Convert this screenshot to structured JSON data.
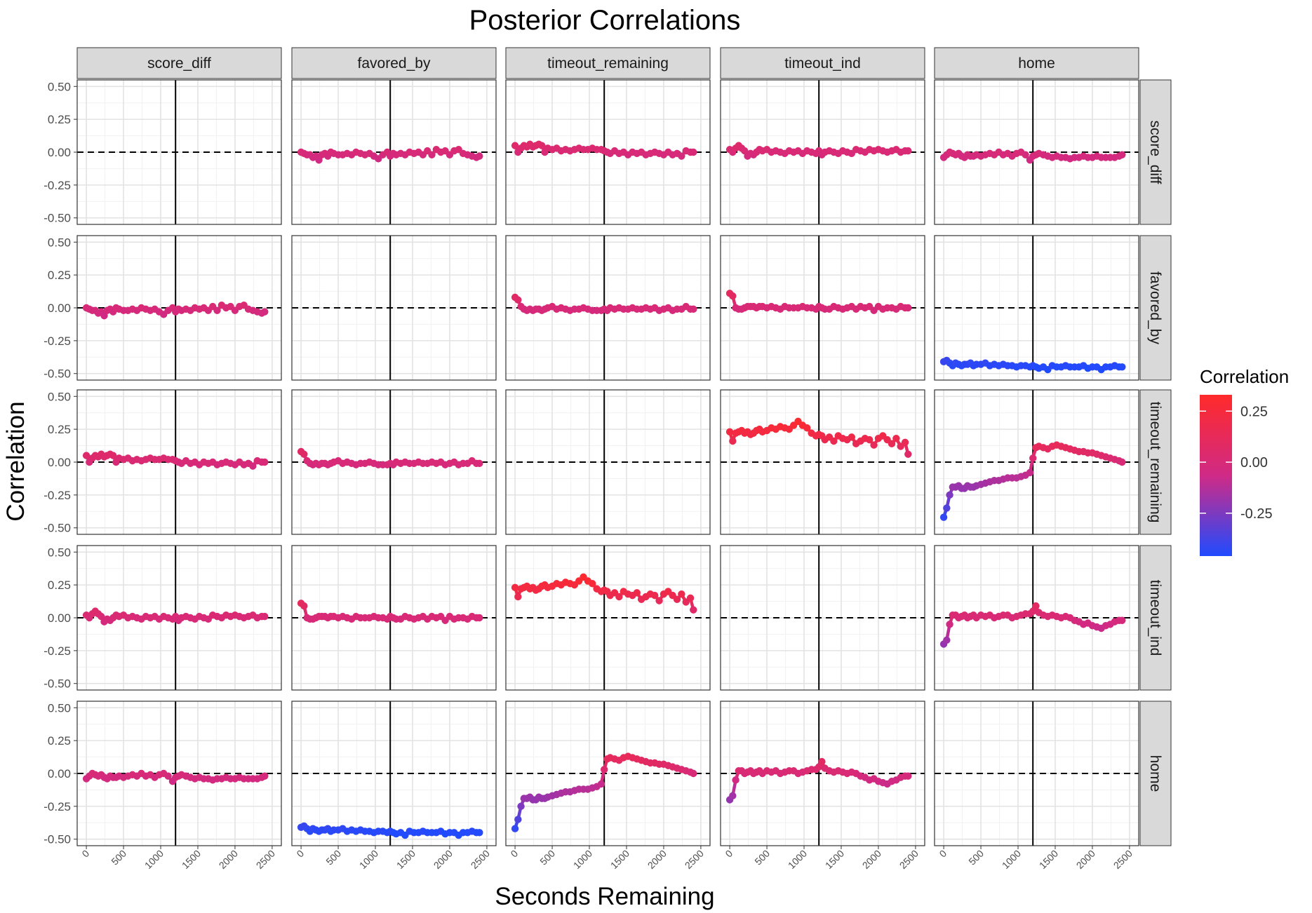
{
  "chart_data": {
    "type": "line",
    "title": "Posterior Correlations",
    "xlabel": "Seconds Remaining",
    "ylabel": "Correlation",
    "x_ticks": [
      0,
      500,
      1000,
      1500,
      2000,
      2500
    ],
    "y_ticks": [
      0.5,
      0.25,
      0.0,
      -0.25,
      -0.5
    ],
    "y_tick_labels": [
      "0.50",
      "0.25",
      "0.00",
      "-0.25",
      "-0.50"
    ],
    "xlim": [
      0,
      2500
    ],
    "ylim": [
      -0.5,
      0.5
    ],
    "vline_x": 1200,
    "hline_y": 0,
    "variables": [
      "score_diff",
      "favored_by",
      "timeout_remaining",
      "timeout_ind",
      "home"
    ],
    "x": [
      0,
      40,
      80,
      120,
      160,
      200,
      240,
      280,
      320,
      360,
      400,
      440,
      500,
      560,
      620,
      680,
      740,
      800,
      860,
      920,
      980,
      1040,
      1100,
      1160,
      1200,
      1240,
      1280,
      1340,
      1400,
      1460,
      1520,
      1580,
      1640,
      1700,
      1760,
      1820,
      1880,
      1940,
      2000,
      2060,
      2120,
      2180,
      2240,
      2300,
      2360,
      2400
    ],
    "legend": {
      "title": "Correlation",
      "labels": [
        "0.25",
        "0.00",
        "-0.25"
      ],
      "values": [
        0.25,
        0.0,
        -0.25
      ],
      "range": [
        -0.46,
        0.33
      ],
      "colors": {
        "low": "#1f4bff",
        "mid": "#d02a86",
        "high": "#ff2a2a"
      }
    },
    "panels": [
      {
        "row": "score_diff",
        "col": "favored_by",
        "values": [
          0.0,
          -0.01,
          -0.02,
          -0.02,
          -0.04,
          -0.03,
          -0.06,
          -0.02,
          -0.01,
          -0.03,
          0.0,
          -0.01,
          -0.02,
          -0.02,
          -0.01,
          -0.02,
          0.0,
          -0.01,
          -0.02,
          -0.01,
          -0.03,
          -0.05,
          -0.02,
          0.0,
          -0.03,
          -0.01,
          -0.02,
          -0.01,
          -0.02,
          0.0,
          -0.01,
          0.0,
          -0.02,
          0.01,
          -0.02,
          0.02,
          0.0,
          0.01,
          -0.02,
          0.01,
          0.02,
          -0.01,
          -0.02,
          -0.03,
          -0.04,
          -0.03
        ]
      },
      {
        "row": "score_diff",
        "col": "timeout_remaining",
        "values": [
          0.05,
          0.0,
          0.03,
          0.05,
          0.04,
          0.06,
          0.04,
          0.05,
          0.06,
          0.05,
          0.0,
          0.03,
          0.02,
          0.03,
          0.01,
          0.02,
          0.01,
          0.02,
          0.03,
          0.02,
          0.02,
          0.03,
          0.02,
          0.02,
          0.01,
          0.0,
          -0.01,
          0.01,
          -0.01,
          0.0,
          -0.02,
          0.0,
          -0.01,
          0.0,
          -0.02,
          -0.01,
          0.0,
          -0.01,
          -0.02,
          0.0,
          -0.02,
          -0.01,
          -0.03,
          0.01,
          0.0,
          0.0
        ]
      },
      {
        "row": "score_diff",
        "col": "timeout_ind",
        "values": [
          0.02,
          0.0,
          0.03,
          0.05,
          0.03,
          0.01,
          -0.03,
          -0.01,
          -0.02,
          0.0,
          0.02,
          0.01,
          0.02,
          0.0,
          0.01,
          0.0,
          -0.01,
          0.01,
          0.0,
          0.01,
          -0.01,
          0.01,
          0.0,
          -0.01,
          0.01,
          -0.02,
          0.0,
          0.01,
          0.0,
          -0.01,
          0.01,
          0.0,
          -0.01,
          0.02,
          0.01,
          0.0,
          0.02,
          0.01,
          0.02,
          0.01,
          0.0,
          0.01,
          0.02,
          0.0,
          0.01,
          0.01
        ]
      },
      {
        "row": "score_diff",
        "col": "home",
        "values": [
          -0.04,
          -0.02,
          0.0,
          -0.01,
          -0.02,
          -0.01,
          -0.03,
          -0.04,
          -0.02,
          -0.03,
          -0.03,
          -0.02,
          -0.03,
          -0.02,
          -0.01,
          -0.02,
          0.0,
          -0.02,
          -0.01,
          -0.03,
          -0.01,
          0.0,
          -0.02,
          -0.06,
          -0.03,
          -0.02,
          -0.01,
          -0.02,
          -0.03,
          -0.04,
          -0.03,
          -0.04,
          -0.04,
          -0.05,
          -0.04,
          -0.04,
          -0.03,
          -0.04,
          -0.04,
          -0.03,
          -0.04,
          -0.04,
          -0.04,
          -0.04,
          -0.03,
          -0.02
        ]
      },
      {
        "row": "favored_by",
        "col": "score_diff",
        "values": [
          0.0,
          -0.01,
          -0.02,
          -0.02,
          -0.04,
          -0.03,
          -0.06,
          -0.02,
          -0.01,
          -0.03,
          0.0,
          -0.01,
          -0.02,
          -0.02,
          -0.01,
          -0.02,
          0.0,
          -0.01,
          -0.02,
          -0.01,
          -0.03,
          -0.05,
          -0.02,
          0.0,
          -0.03,
          -0.01,
          -0.02,
          -0.01,
          -0.02,
          0.0,
          -0.01,
          0.0,
          -0.02,
          0.01,
          -0.02,
          0.02,
          0.0,
          0.01,
          -0.02,
          0.01,
          0.02,
          -0.01,
          -0.02,
          -0.03,
          -0.04,
          -0.03
        ]
      },
      {
        "row": "favored_by",
        "col": "timeout_remaining",
        "values": [
          0.08,
          0.06,
          0.01,
          -0.01,
          -0.02,
          -0.01,
          -0.02,
          -0.01,
          -0.01,
          -0.02,
          -0.01,
          0.0,
          0.01,
          -0.01,
          0.0,
          -0.01,
          -0.02,
          -0.01,
          -0.01,
          0.0,
          -0.01,
          -0.02,
          -0.02,
          -0.02,
          -0.01,
          -0.02,
          0.0,
          -0.01,
          0.0,
          -0.01,
          -0.01,
          0.0,
          -0.01,
          -0.01,
          0.0,
          -0.01,
          0.0,
          -0.02,
          -0.01,
          0.0,
          -0.02,
          -0.01,
          -0.01,
          0.01,
          -0.01,
          -0.01
        ]
      },
      {
        "row": "favored_by",
        "col": "timeout_ind",
        "values": [
          0.11,
          0.09,
          0.0,
          -0.01,
          -0.01,
          0.0,
          0.01,
          0.01,
          0.01,
          0.0,
          0.01,
          0.01,
          0.0,
          0.01,
          0.0,
          -0.01,
          0.01,
          0.0,
          0.0,
          0.0,
          0.01,
          0.0,
          0.0,
          -0.01,
          0.01,
          0.0,
          -0.01,
          -0.01,
          0.01,
          0.0,
          -0.01,
          0.0,
          0.01,
          -0.01,
          0.01,
          0.0,
          0.01,
          -0.02,
          0.01,
          -0.01,
          0.0,
          0.0,
          -0.01,
          0.01,
          0.0,
          0.0
        ]
      },
      {
        "row": "favored_by",
        "col": "home",
        "values": [
          -0.41,
          -0.4,
          -0.42,
          -0.44,
          -0.42,
          -0.43,
          -0.44,
          -0.43,
          -0.43,
          -0.42,
          -0.44,
          -0.43,
          -0.43,
          -0.42,
          -0.44,
          -0.43,
          -0.44,
          -0.43,
          -0.44,
          -0.44,
          -0.45,
          -0.44,
          -0.44,
          -0.45,
          -0.44,
          -0.45,
          -0.46,
          -0.45,
          -0.47,
          -0.44,
          -0.45,
          -0.45,
          -0.44,
          -0.45,
          -0.45,
          -0.45,
          -0.44,
          -0.46,
          -0.45,
          -0.45,
          -0.47,
          -0.45,
          -0.45,
          -0.44,
          -0.45,
          -0.45
        ]
      },
      {
        "row": "timeout_remaining",
        "col": "score_diff",
        "values": [
          0.05,
          0.0,
          0.03,
          0.05,
          0.04,
          0.06,
          0.04,
          0.05,
          0.06,
          0.05,
          0.0,
          0.03,
          0.02,
          0.03,
          0.01,
          0.02,
          0.01,
          0.02,
          0.03,
          0.02,
          0.02,
          0.03,
          0.02,
          0.02,
          0.01,
          0.0,
          -0.01,
          0.01,
          -0.01,
          0.0,
          -0.02,
          0.0,
          -0.01,
          0.0,
          -0.02,
          -0.01,
          0.0,
          -0.01,
          -0.02,
          0.0,
          -0.02,
          -0.01,
          -0.03,
          0.01,
          0.0,
          0.0
        ]
      },
      {
        "row": "timeout_remaining",
        "col": "favored_by",
        "values": [
          0.08,
          0.06,
          0.01,
          -0.01,
          -0.02,
          -0.01,
          -0.02,
          -0.01,
          -0.01,
          -0.02,
          -0.01,
          0.0,
          0.01,
          -0.01,
          0.0,
          -0.01,
          -0.02,
          -0.01,
          -0.01,
          0.0,
          -0.01,
          -0.02,
          -0.02,
          -0.02,
          -0.01,
          -0.02,
          0.0,
          -0.01,
          0.0,
          -0.01,
          -0.01,
          0.0,
          -0.01,
          -0.01,
          0.0,
          -0.01,
          0.0,
          -0.02,
          -0.01,
          0.0,
          -0.02,
          -0.01,
          -0.01,
          0.01,
          -0.01,
          -0.01
        ]
      },
      {
        "row": "timeout_remaining",
        "col": "timeout_ind",
        "values": [
          0.23,
          0.16,
          0.22,
          0.23,
          0.24,
          0.22,
          0.23,
          0.21,
          0.22,
          0.24,
          0.25,
          0.23,
          0.24,
          0.26,
          0.25,
          0.27,
          0.26,
          0.25,
          0.28,
          0.31,
          0.28,
          0.26,
          0.22,
          0.2,
          0.21,
          0.2,
          0.17,
          0.19,
          0.16,
          0.2,
          0.18,
          0.17,
          0.19,
          0.14,
          0.16,
          0.18,
          0.17,
          0.13,
          0.18,
          0.2,
          0.17,
          0.14,
          0.18,
          0.12,
          0.15,
          0.06
        ]
      },
      {
        "row": "timeout_remaining",
        "col": "home",
        "values": [
          -0.42,
          -0.35,
          -0.25,
          -0.19,
          -0.19,
          -0.18,
          -0.2,
          -0.2,
          -0.18,
          -0.19,
          -0.19,
          -0.18,
          -0.17,
          -0.16,
          -0.15,
          -0.14,
          -0.14,
          -0.13,
          -0.12,
          -0.12,
          -0.12,
          -0.11,
          -0.1,
          -0.08,
          0.03,
          0.11,
          0.12,
          0.11,
          0.1,
          0.12,
          0.13,
          0.12,
          0.11,
          0.1,
          0.09,
          0.08,
          0.08,
          0.07,
          0.07,
          0.06,
          0.05,
          0.04,
          0.03,
          0.02,
          0.01,
          0.0
        ]
      },
      {
        "row": "timeout_ind",
        "col": "score_diff",
        "values": [
          0.02,
          0.0,
          0.03,
          0.05,
          0.03,
          0.01,
          -0.03,
          -0.01,
          -0.02,
          0.0,
          0.02,
          0.01,
          0.02,
          0.0,
          0.01,
          0.0,
          -0.01,
          0.01,
          0.0,
          0.01,
          -0.01,
          0.01,
          0.0,
          -0.01,
          0.01,
          -0.02,
          0.0,
          0.01,
          0.0,
          -0.01,
          0.01,
          0.0,
          -0.01,
          0.02,
          0.01,
          0.0,
          0.02,
          0.01,
          0.02,
          0.01,
          0.0,
          0.01,
          0.02,
          0.0,
          0.01,
          0.01
        ]
      },
      {
        "row": "timeout_ind",
        "col": "favored_by",
        "values": [
          0.11,
          0.09,
          0.0,
          -0.01,
          -0.01,
          0.0,
          0.01,
          0.01,
          0.01,
          0.0,
          0.01,
          0.01,
          0.0,
          0.01,
          0.0,
          -0.01,
          0.01,
          0.0,
          0.0,
          0.0,
          0.01,
          0.0,
          0.0,
          -0.01,
          0.01,
          0.0,
          -0.01,
          -0.01,
          0.01,
          0.0,
          -0.01,
          0.0,
          0.01,
          -0.01,
          0.01,
          0.0,
          0.01,
          -0.02,
          0.01,
          -0.01,
          0.0,
          0.0,
          -0.01,
          0.01,
          0.0,
          0.0
        ]
      },
      {
        "row": "timeout_ind",
        "col": "timeout_remaining",
        "values": [
          0.23,
          0.16,
          0.22,
          0.23,
          0.24,
          0.22,
          0.23,
          0.21,
          0.22,
          0.24,
          0.25,
          0.23,
          0.24,
          0.26,
          0.25,
          0.27,
          0.26,
          0.25,
          0.28,
          0.31,
          0.28,
          0.26,
          0.22,
          0.2,
          0.21,
          0.2,
          0.17,
          0.19,
          0.16,
          0.2,
          0.18,
          0.17,
          0.19,
          0.14,
          0.16,
          0.18,
          0.17,
          0.13,
          0.18,
          0.2,
          0.17,
          0.14,
          0.18,
          0.12,
          0.15,
          0.06
        ]
      },
      {
        "row": "timeout_ind",
        "col": "home",
        "values": [
          -0.2,
          -0.17,
          -0.05,
          0.02,
          0.02,
          0.0,
          0.01,
          0.02,
          0.0,
          0.01,
          0.02,
          0.0,
          0.02,
          0.01,
          0.02,
          0.0,
          0.01,
          0.02,
          0.02,
          0.0,
          0.01,
          0.02,
          0.03,
          0.03,
          0.05,
          0.09,
          0.04,
          0.02,
          0.01,
          0.02,
          0.01,
          0.0,
          0.01,
          0.0,
          -0.02,
          -0.03,
          -0.05,
          -0.04,
          -0.06,
          -0.07,
          -0.08,
          -0.06,
          -0.05,
          -0.03,
          -0.02,
          -0.02
        ]
      },
      {
        "row": "home",
        "col": "score_diff",
        "values": [
          -0.04,
          -0.02,
          0.0,
          -0.01,
          -0.02,
          -0.01,
          -0.03,
          -0.04,
          -0.02,
          -0.03,
          -0.03,
          -0.02,
          -0.03,
          -0.02,
          -0.01,
          -0.02,
          0.0,
          -0.02,
          -0.01,
          -0.03,
          -0.01,
          0.0,
          -0.02,
          -0.06,
          -0.03,
          -0.02,
          -0.01,
          -0.02,
          -0.03,
          -0.04,
          -0.03,
          -0.04,
          -0.04,
          -0.05,
          -0.04,
          -0.04,
          -0.03,
          -0.04,
          -0.04,
          -0.03,
          -0.04,
          -0.04,
          -0.04,
          -0.04,
          -0.03,
          -0.02
        ]
      },
      {
        "row": "home",
        "col": "favored_by",
        "values": [
          -0.41,
          -0.4,
          -0.42,
          -0.44,
          -0.42,
          -0.43,
          -0.44,
          -0.43,
          -0.43,
          -0.42,
          -0.44,
          -0.43,
          -0.43,
          -0.42,
          -0.44,
          -0.43,
          -0.44,
          -0.43,
          -0.44,
          -0.44,
          -0.45,
          -0.44,
          -0.44,
          -0.45,
          -0.44,
          -0.45,
          -0.46,
          -0.45,
          -0.47,
          -0.44,
          -0.45,
          -0.45,
          -0.44,
          -0.45,
          -0.45,
          -0.45,
          -0.44,
          -0.46,
          -0.45,
          -0.45,
          -0.47,
          -0.45,
          -0.45,
          -0.44,
          -0.45,
          -0.45
        ]
      },
      {
        "row": "home",
        "col": "timeout_remaining",
        "values": [
          -0.42,
          -0.35,
          -0.25,
          -0.19,
          -0.19,
          -0.18,
          -0.2,
          -0.2,
          -0.18,
          -0.19,
          -0.19,
          -0.18,
          -0.17,
          -0.16,
          -0.15,
          -0.14,
          -0.14,
          -0.13,
          -0.12,
          -0.12,
          -0.12,
          -0.11,
          -0.1,
          -0.08,
          0.03,
          0.11,
          0.12,
          0.11,
          0.1,
          0.12,
          0.13,
          0.12,
          0.11,
          0.1,
          0.09,
          0.08,
          0.08,
          0.07,
          0.07,
          0.06,
          0.05,
          0.04,
          0.03,
          0.02,
          0.01,
          0.0
        ]
      },
      {
        "row": "home",
        "col": "timeout_ind",
        "values": [
          -0.2,
          -0.17,
          -0.05,
          0.02,
          0.02,
          0.0,
          0.01,
          0.02,
          0.0,
          0.01,
          0.02,
          0.0,
          0.02,
          0.01,
          0.02,
          0.0,
          0.01,
          0.02,
          0.02,
          0.0,
          0.01,
          0.02,
          0.03,
          0.03,
          0.05,
          0.09,
          0.04,
          0.02,
          0.01,
          0.02,
          0.01,
          0.0,
          0.01,
          0.0,
          -0.02,
          -0.03,
          -0.05,
          -0.04,
          -0.06,
          -0.07,
          -0.08,
          -0.06,
          -0.05,
          -0.03,
          -0.02,
          -0.02
        ]
      }
    ]
  }
}
